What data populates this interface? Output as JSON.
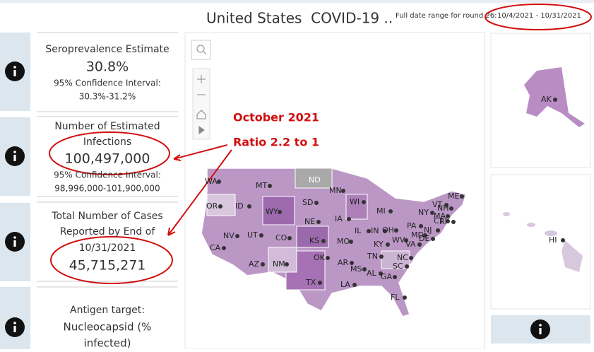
{
  "header": {
    "title": "United States  COVID-19 ..",
    "date_range_label": "Full date range for round 26:",
    "date_range": "10/4/2021 - 10/31/2021"
  },
  "cards": [
    {
      "label_lines": [
        "Seroprevalence Estimate"
      ],
      "value": "30.8%",
      "ci_label": "95% Confidence Interval:",
      "ci": "30.3%-31.2%"
    },
    {
      "label_lines": [
        "Number of Estimated",
        "Infections"
      ],
      "value": "100,497,000",
      "ci_label": "95% Confidence Interval:",
      "ci": "98,996,000-101,900,000"
    },
    {
      "label_lines": [
        "Total Number of Cases",
        "Reported by End of",
        "10/31/2021"
      ],
      "value": "45,715,271"
    },
    {
      "label_lines": [
        "Antigen target:"
      ],
      "value_lines": [
        "Nucleocapsid (%",
        "infected)"
      ]
    }
  ],
  "annotations": [
    "October 2021",
    "Ratio 2.2 to 1"
  ],
  "map": {
    "states": [
      "WA",
      "MT",
      "ND",
      "MN",
      "ME",
      "OR",
      "ID",
      "WY",
      "SD",
      "WI",
      "MI",
      "NY",
      "VT",
      "NH",
      "MA",
      "CT",
      "RI",
      "NV",
      "UT",
      "CO",
      "NE",
      "IA",
      "IL",
      "IN",
      "OH",
      "PA",
      "NJ",
      "MD",
      "DE",
      "CA",
      "KS",
      "MO",
      "KY",
      "WV",
      "VA",
      "AZ",
      "NM",
      "OK",
      "TN",
      "NC",
      "AR",
      "SC",
      "MS",
      "AL",
      "GA",
      "TX",
      "LA",
      "FL",
      "AK",
      "HI"
    ]
  }
}
